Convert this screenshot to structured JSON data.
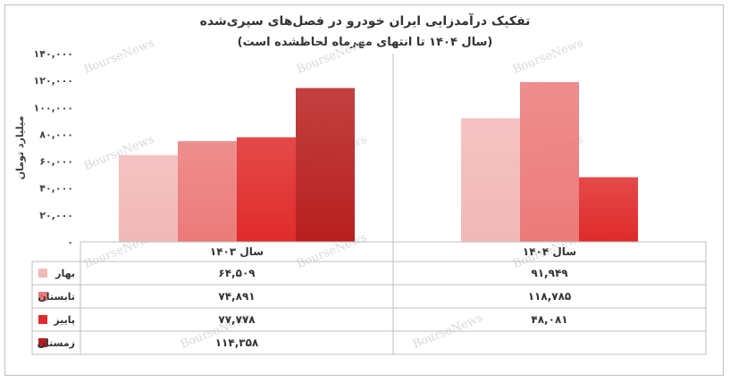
{
  "chart_data": {
    "type": "bar",
    "title": "تفکیک درآمدزایی ایران خودرو در فصل‌های سپری‌شده",
    "subtitle": "(سال ۱۴۰۴ تا انتهای مهرماه لحاظشده است)",
    "ylabel": "میلیارد تومان",
    "xlabel": "",
    "ylim": [
      0,
      140000
    ],
    "yticks": [
      0,
      20000,
      40000,
      60000,
      80000,
      100000,
      120000,
      140000
    ],
    "ytick_labels": [
      "۰",
      "۲۰,۰۰۰",
      "۴۰,۰۰۰",
      "۶۰,۰۰۰",
      "۸۰,۰۰۰",
      "۱۰۰,۰۰۰",
      "۱۲۰,۰۰۰",
      "۱۴۰,۰۰۰"
    ],
    "categories": [
      "سال ۱۴۰۳",
      "سال ۱۴۰۴"
    ],
    "series": [
      {
        "name": "بهار",
        "values": [
          64509,
          91949
        ],
        "value_labels": [
          "۶۴,۵۰۹",
          "۹۱,۹۴۹"
        ],
        "color": "#f2b8b8"
      },
      {
        "name": "تابستان",
        "values": [
          74891,
          118785
        ],
        "value_labels": [
          "۷۴,۸۹۱",
          "۱۱۸,۷۸۵"
        ],
        "color": "#ec7a7a"
      },
      {
        "name": "پاییز",
        "values": [
          77778,
          48081
        ],
        "value_labels": [
          "۷۷,۷۷۸",
          "۴۸,۰۸۱"
        ],
        "color": "#e02a2a"
      },
      {
        "name": "زمستان",
        "values": [
          114358,
          null
        ],
        "value_labels": [
          "۱۱۴,۳۵۸",
          ""
        ],
        "color": "#b81f1f"
      }
    ],
    "legend": "in-table-left",
    "grid": false
  },
  "watermark": "BourseNews"
}
